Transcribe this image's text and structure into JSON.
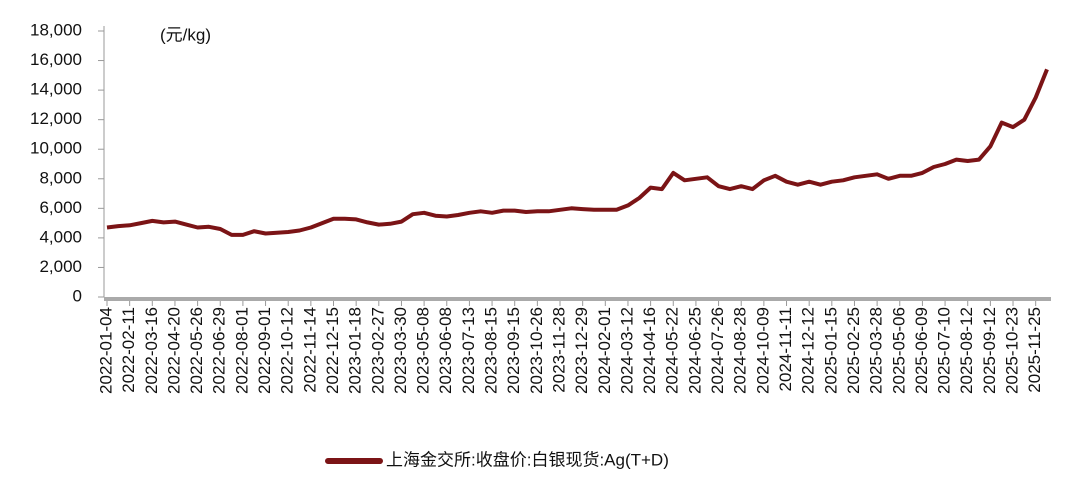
{
  "chart_data": {
    "type": "line",
    "unit_label": "(元/kg)",
    "categories": [
      "2022-01-04",
      null,
      "2022-02-11",
      null,
      "2022-03-16",
      null,
      "2022-04-20",
      null,
      "2022-05-26",
      null,
      "2022-06-29",
      null,
      "2022-08-01",
      null,
      "2022-09-01",
      null,
      "2022-10-12",
      null,
      "2022-11-14",
      null,
      "2022-12-15",
      null,
      "2023-01-18",
      null,
      "2023-02-27",
      null,
      "2023-03-30",
      null,
      "2023-05-08",
      null,
      "2023-06-08",
      null,
      "2023-07-13",
      null,
      "2023-08-15",
      null,
      "2023-09-15",
      null,
      "2023-10-26",
      null,
      "2023-11-28",
      null,
      "2023-12-29",
      null,
      "2024-02-01",
      null,
      "2024-03-12",
      null,
      "2024-04-16",
      null,
      "2024-05-22",
      null,
      "2024-06-25",
      null,
      "2024-07-26",
      null,
      "2024-08-28",
      null,
      "2024-10-09",
      null,
      "2024-11-11",
      null,
      "2024-12-12",
      null,
      "2025-01-15",
      null,
      "2025-02-25",
      null,
      "2025-03-28",
      null,
      "2025-05-06",
      null,
      "2025-06-09",
      null,
      "2025-07-10",
      null,
      "2025-08-12",
      null,
      "2025-09-12",
      null,
      "2025-10-23",
      null,
      "2025-11-25",
      null
    ],
    "series": [
      {
        "name": "上海金交所:收盘价:白银现货:Ag(T+D)",
        "color": "#7b1416",
        "values": [
          4700,
          4800,
          4850,
          5000,
          5150,
          5050,
          5100,
          4900,
          4700,
          4750,
          4600,
          4200,
          4200,
          4450,
          4300,
          4350,
          4400,
          4500,
          4700,
          5000,
          5300,
          5300,
          5250,
          5050,
          4900,
          4950,
          5100,
          5600,
          5700,
          5500,
          5450,
          5550,
          5700,
          5800,
          5700,
          5850,
          5850,
          5750,
          5800,
          5800,
          5900,
          6000,
          5950,
          5900,
          5900,
          5900,
          6200,
          6700,
          7400,
          7300,
          8400,
          7900,
          8000,
          8100,
          7500,
          7300,
          7500,
          7300,
          7900,
          8200,
          7800,
          7600,
          7800,
          7600,
          7800,
          7900,
          8100,
          8200,
          8300,
          8000,
          8200,
          8200,
          8400,
          8800,
          9000,
          9300,
          9200,
          9300,
          10200,
          11800,
          11500,
          12000,
          13500,
          15400
        ]
      }
    ],
    "ylim": [
      0,
      18000
    ],
    "yticks": [
      0,
      {
        "value": 2000,
        "label": "2,000"
      },
      {
        "value": 4000,
        "label": "4,000"
      },
      {
        "value": 6000,
        "label": "6,000"
      },
      {
        "value": 8000,
        "label": "8,000"
      },
      {
        "value": 10000,
        "label": "10,000"
      },
      {
        "value": 12000,
        "label": "12,000"
      },
      {
        "value": 14000,
        "label": "14,000"
      },
      {
        "value": 16000,
        "label": "16,000"
      },
      {
        "value": 18000,
        "label": "18,000"
      }
    ],
    "legend": "bottom"
  }
}
